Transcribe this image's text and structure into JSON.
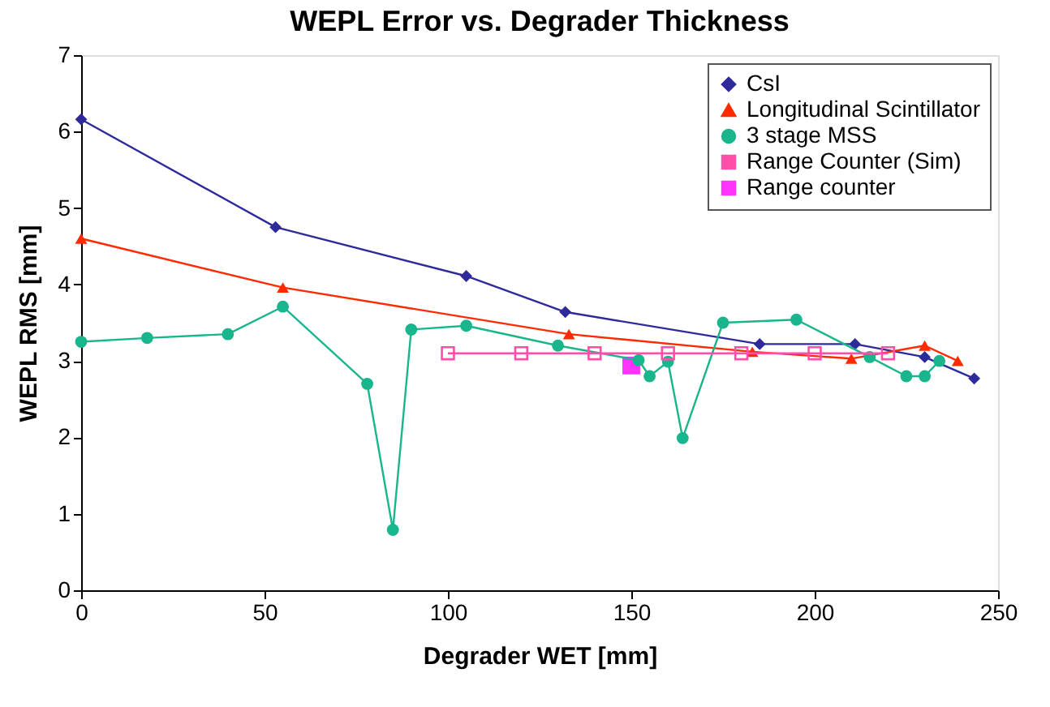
{
  "chart_data": {
    "type": "line",
    "title": "WEPL Error vs. Degrader Thickness",
    "xlabel": "Degrader WET [mm]",
    "ylabel": "WEPL RMS [mm]",
    "xlim": [
      0,
      250
    ],
    "xticks": [
      0,
      50,
      100,
      150,
      200,
      250
    ],
    "ylim": [
      0,
      7
    ],
    "yticks": [
      0,
      1,
      2,
      3,
      4,
      5,
      6,
      7
    ],
    "grid": false,
    "legend": "top right",
    "line_style": "solid",
    "series": [
      {
        "name": "CsI",
        "color": "#2e2a9c",
        "marker": "diamond",
        "x": [
          0,
          53,
          105,
          132,
          185,
          211,
          230,
          243.5
        ],
        "values": [
          6.16,
          4.75,
          4.11,
          3.64,
          3.22,
          3.22,
          3.05,
          2.77
        ]
      },
      {
        "name": "Longitudinal Scintillator",
        "color": "#ff2a00",
        "marker": "triangle",
        "x": [
          0,
          55,
          133,
          183,
          210,
          230,
          239
        ],
        "values": [
          4.6,
          3.96,
          3.35,
          3.12,
          3.03,
          3.2,
          3.0
        ]
      },
      {
        "name": "3 stage MSS",
        "color": "#19b58c",
        "marker": "circle",
        "x": [
          0,
          18,
          40,
          55,
          78,
          85,
          90,
          105,
          130,
          152,
          155,
          160,
          164,
          175,
          195,
          215,
          225,
          230,
          234
        ],
        "values": [
          3.25,
          3.3,
          3.35,
          3.71,
          2.7,
          0.79,
          3.41,
          3.46,
          3.2,
          3.01,
          2.8,
          2.99,
          1.99,
          3.5,
          3.54,
          3.05,
          2.8,
          2.8,
          3.0
        ]
      },
      {
        "name": "Range Counter (Sim)",
        "color": "#ff4fa8",
        "marker": "square",
        "x": [
          100,
          120,
          140,
          160,
          180,
          200,
          220
        ],
        "values": [
          3.1,
          3.1,
          3.1,
          3.1,
          3.1,
          3.1,
          3.1
        ]
      },
      {
        "name": "Range counter",
        "type": "scatter",
        "color": "#ff33ff",
        "marker": "square",
        "x": [
          150
        ],
        "values": [
          2.94
        ]
      }
    ]
  }
}
